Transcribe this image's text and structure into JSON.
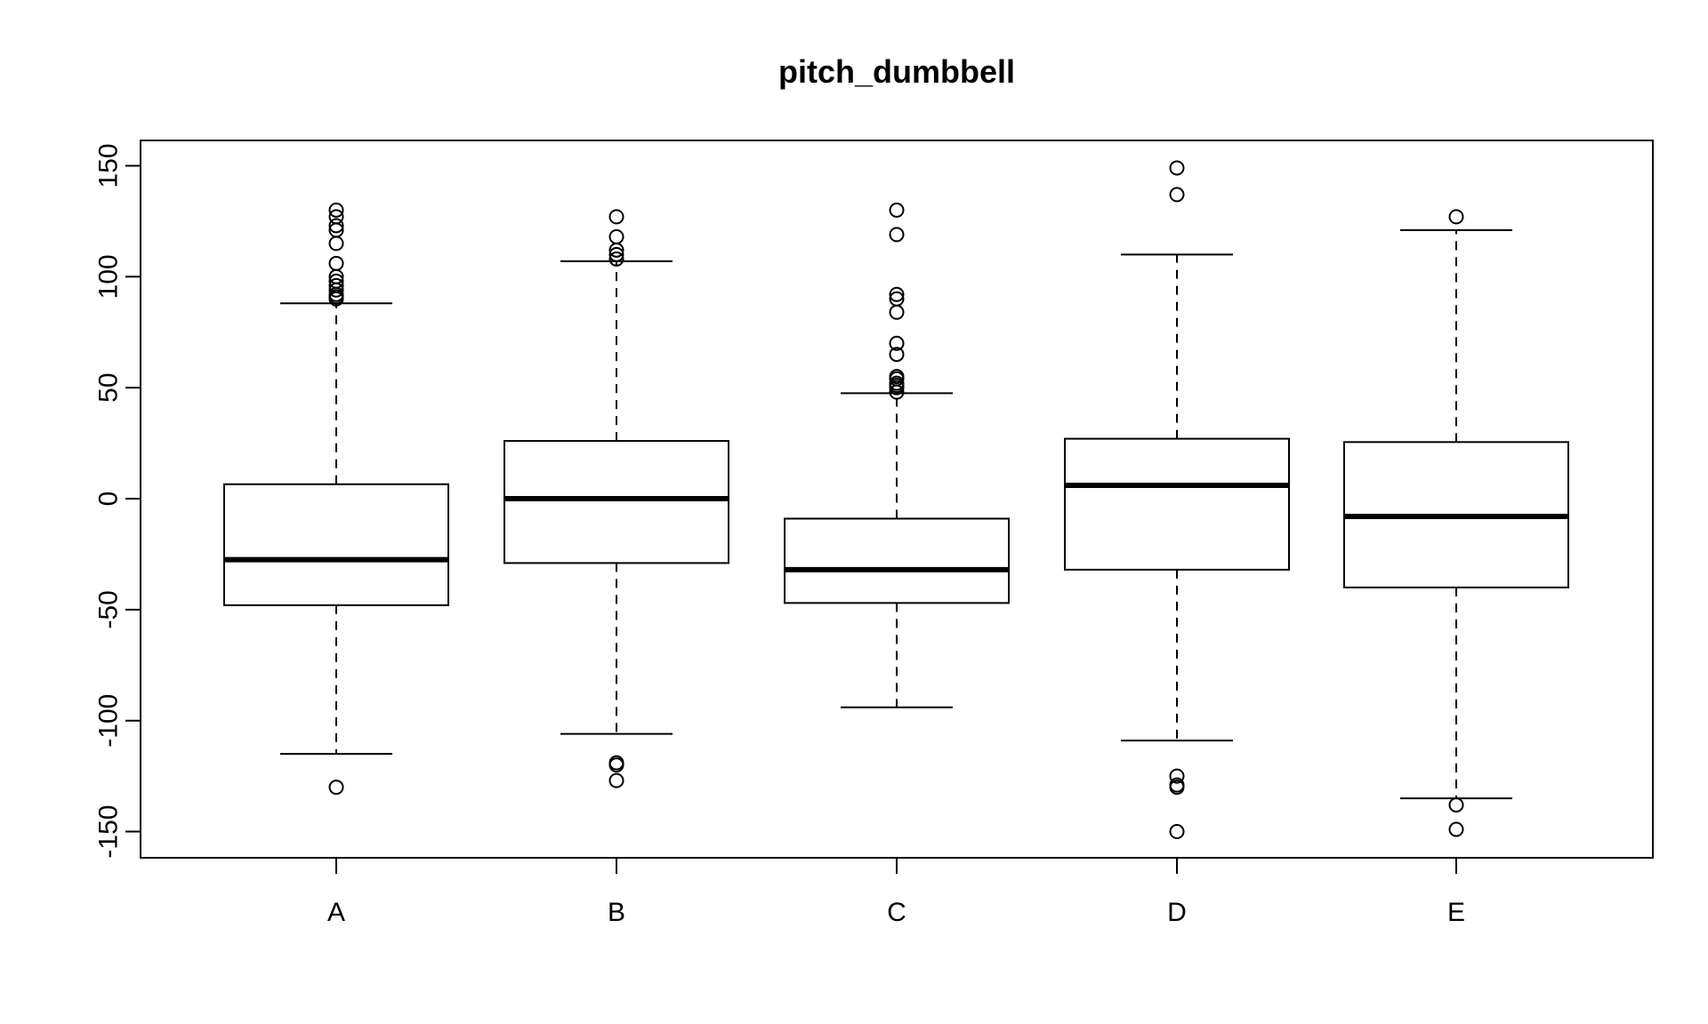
{
  "chart_data": {
    "type": "boxplot",
    "title": "pitch_dumbbell",
    "xlabel": "",
    "ylabel": "",
    "categories": [
      "A",
      "B",
      "C",
      "D",
      "E"
    ],
    "ylim": [
      -162,
      161
    ],
    "yticks": [
      -150,
      -100,
      -50,
      0,
      50,
      100,
      150
    ],
    "grid": false,
    "boxes": [
      {
        "category": "A",
        "whisker_low": -115,
        "q1": -48,
        "median": -27.5,
        "q3": 6.5,
        "whisker_high": 88,
        "outliers": [
          -130,
          90,
          91,
          92,
          94,
          96,
          98,
          100,
          106,
          115,
          121,
          123,
          127,
          130
        ]
      },
      {
        "category": "B",
        "whisker_low": -106,
        "q1": -29,
        "median": 0,
        "q3": 26,
        "whisker_high": 107,
        "outliers": [
          -127,
          -120,
          -119,
          108,
          110,
          112,
          118,
          127
        ]
      },
      {
        "category": "C",
        "whisker_low": -94,
        "q1": -47,
        "median": -32,
        "q3": -9,
        "whisker_high": 47.5,
        "outliers": [
          48,
          50,
          51,
          52,
          54,
          55,
          65,
          70,
          84,
          90,
          92,
          119,
          130
        ]
      },
      {
        "category": "D",
        "whisker_low": -109,
        "q1": -32,
        "median": 6,
        "q3": 27,
        "whisker_high": 110,
        "outliers": [
          -150,
          -130,
          -129,
          -125,
          137,
          149
        ]
      },
      {
        "category": "E",
        "whisker_low": -135,
        "q1": -40,
        "median": -8,
        "q3": 25.5,
        "whisker_high": 121,
        "outliers": [
          -149,
          -138,
          127
        ]
      }
    ]
  }
}
